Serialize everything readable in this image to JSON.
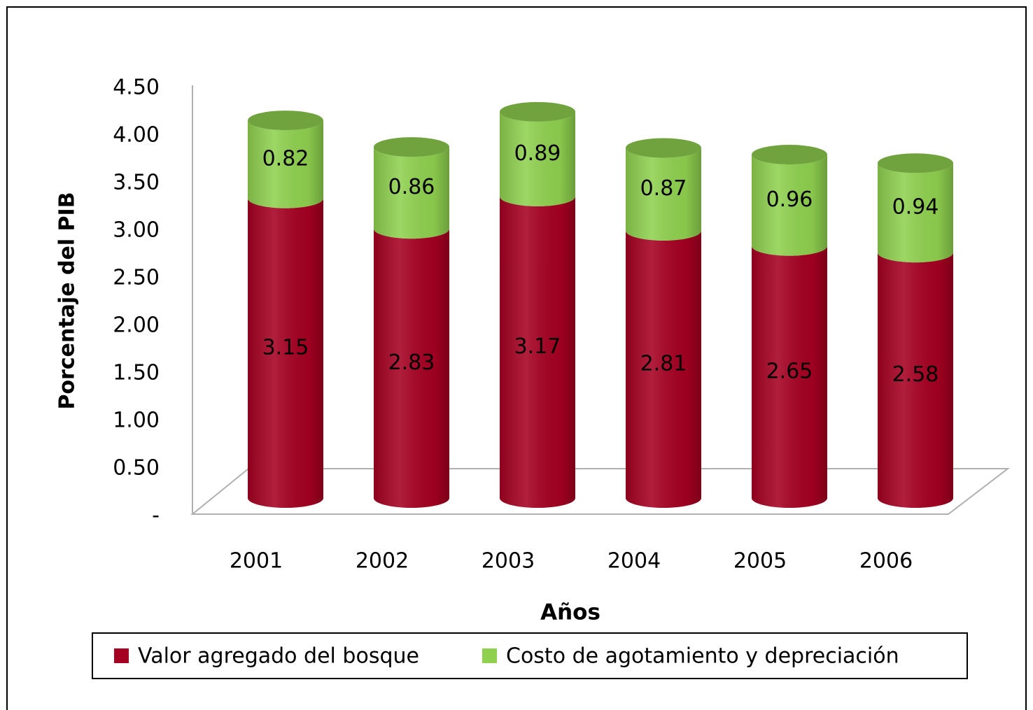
{
  "chart_data": {
    "type": "bar3d_stacked",
    "x_label": "Años",
    "y_label": "Porcentaje del PIB",
    "categories": [
      "2001",
      "2002",
      "2003",
      "2004",
      "2005",
      "2006"
    ],
    "series": [
      {
        "name": "Valor agregado del bosque",
        "color": "#a50021",
        "values": [
          3.15,
          2.83,
          3.17,
          2.81,
          2.65,
          2.58
        ]
      },
      {
        "name": "Costo de agotamiento y depreciación",
        "color": "#8fd14f",
        "values": [
          0.82,
          0.86,
          0.89,
          0.87,
          0.96,
          0.94
        ]
      }
    ],
    "ylim": [
      0,
      4.5
    ],
    "yticks": [
      {
        "value": 0,
        "label": "-"
      },
      {
        "value": 0.5,
        "label": "0.50"
      },
      {
        "value": 1,
        "label": "1.00"
      },
      {
        "value": 1.5,
        "label": "1.50"
      },
      {
        "value": 2,
        "label": "2.00"
      },
      {
        "value": 2.5,
        "label": "2.50"
      },
      {
        "value": 3,
        "label": "3.00"
      },
      {
        "value": 3.5,
        "label": "3.50"
      },
      {
        "value": 4,
        "label": "4.00"
      },
      {
        "value": 4.5,
        "label": "4.50"
      }
    ],
    "legend": "bottom"
  }
}
